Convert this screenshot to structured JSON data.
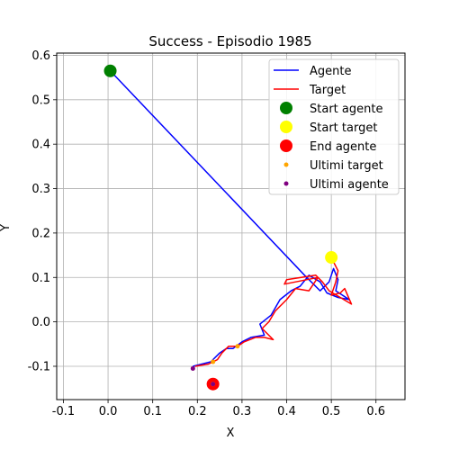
{
  "chart_data": {
    "type": "line",
    "title": "Success - Episodio 1985",
    "xlabel": "X",
    "ylabel": "Y",
    "xlim": [
      -0.115,
      0.665
    ],
    "ylim": [
      -0.175,
      0.605
    ],
    "xticks": [
      -0.1,
      0.0,
      0.1,
      0.2,
      0.3,
      0.4,
      0.5,
      0.6
    ],
    "yticks": [
      -0.1,
      0.0,
      0.1,
      0.2,
      0.3,
      0.4,
      0.5,
      0.6
    ],
    "grid": true,
    "legend_position": "top-right",
    "colors": {
      "agent": "#0000ff",
      "target": "#ff0000",
      "start_agent": "#008000",
      "start_target": "#ffff00",
      "end_agent": "#ff0000",
      "recent_target": "#ffa500",
      "recent_agent": "#800080"
    },
    "legend": [
      {
        "label": "Agente",
        "kind": "line",
        "color": "#0000ff"
      },
      {
        "label": "Target",
        "kind": "line",
        "color": "#ff0000"
      },
      {
        "label": "Start agente",
        "kind": "marker",
        "color": "#008000",
        "size": "large"
      },
      {
        "label": "Start target",
        "kind": "marker",
        "color": "#ffff00",
        "size": "large"
      },
      {
        "label": "End agente",
        "kind": "marker",
        "color": "#ff0000",
        "size": "large"
      },
      {
        "label": "Ultimi target",
        "kind": "marker",
        "color": "#ffa500",
        "size": "small"
      },
      {
        "label": "Ultimi agente",
        "kind": "marker",
        "color": "#800080",
        "size": "small"
      }
    ],
    "series": [
      {
        "name": "Agente",
        "points": [
          [
            0.005,
            0.565
          ],
          [
            0.44,
            0.105
          ],
          [
            0.475,
            0.07
          ],
          [
            0.495,
            0.09
          ],
          [
            0.505,
            0.12
          ],
          [
            0.515,
            0.095
          ],
          [
            0.51,
            0.07
          ],
          [
            0.525,
            0.06
          ],
          [
            0.54,
            0.05
          ],
          [
            0.515,
            0.055
          ],
          [
            0.49,
            0.065
          ],
          [
            0.475,
            0.09
          ],
          [
            0.45,
            0.105
          ],
          [
            0.43,
            0.08
          ],
          [
            0.41,
            0.07
          ],
          [
            0.385,
            0.05
          ],
          [
            0.365,
            0.015
          ],
          [
            0.34,
            -0.005
          ],
          [
            0.35,
            -0.03
          ],
          [
            0.32,
            -0.035
          ],
          [
            0.3,
            -0.045
          ],
          [
            0.28,
            -0.06
          ],
          [
            0.265,
            -0.06
          ],
          [
            0.25,
            -0.07
          ],
          [
            0.23,
            -0.09
          ],
          [
            0.21,
            -0.095
          ],
          [
            0.19,
            -0.1
          ]
        ]
      },
      {
        "name": "Target",
        "points": [
          [
            0.5,
            0.145
          ],
          [
            0.515,
            0.115
          ],
          [
            0.51,
            0.09
          ],
          [
            0.5,
            0.06
          ],
          [
            0.52,
            0.065
          ],
          [
            0.53,
            0.075
          ],
          [
            0.545,
            0.04
          ],
          [
            0.52,
            0.055
          ],
          [
            0.495,
            0.07
          ],
          [
            0.48,
            0.09
          ],
          [
            0.465,
            0.105
          ],
          [
            0.4,
            0.095
          ],
          [
            0.395,
            0.085
          ],
          [
            0.47,
            0.1
          ],
          [
            0.45,
            0.07
          ],
          [
            0.42,
            0.075
          ],
          [
            0.4,
            0.05
          ],
          [
            0.375,
            0.025
          ],
          [
            0.36,
            0.0
          ],
          [
            0.345,
            -0.015
          ],
          [
            0.37,
            -0.04
          ],
          [
            0.35,
            -0.035
          ],
          [
            0.33,
            -0.035
          ],
          [
            0.305,
            -0.045
          ],
          [
            0.29,
            -0.055
          ],
          [
            0.27,
            -0.055
          ],
          [
            0.255,
            -0.07
          ],
          [
            0.245,
            -0.085
          ],
          [
            0.225,
            -0.095
          ],
          [
            0.195,
            -0.1
          ]
        ]
      }
    ],
    "markers": {
      "start_agente": [
        0.005,
        0.565
      ],
      "start_target": [
        0.5,
        0.145
      ],
      "end_agente": [
        0.235,
        -0.14
      ],
      "ultimi_target": [
        [
          0.29,
          -0.055
        ],
        [
          0.235,
          -0.09
        ],
        [
          0.235,
          -0.14
        ]
      ],
      "ultimi_agente": [
        [
          0.19,
          -0.105
        ],
        [
          0.235,
          -0.14
        ]
      ]
    }
  }
}
